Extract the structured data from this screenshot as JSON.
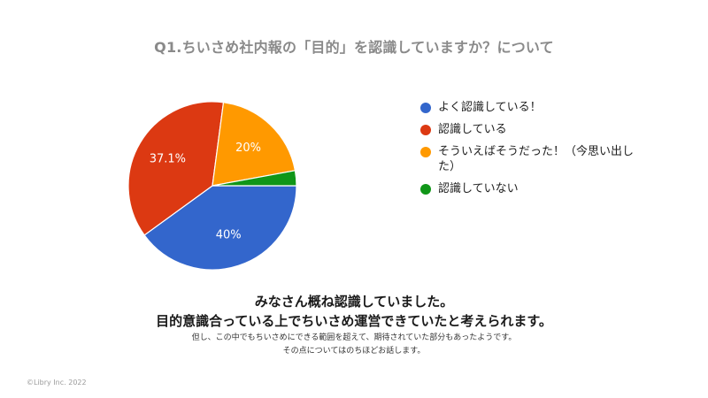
{
  "chart_data": {
    "type": "pie",
    "title": "Q1.ちいさめ社内報の「目的」を認識していますか？について",
    "slices": [
      {
        "label": "よく認識している！",
        "value": 40,
        "display": "40%",
        "color": "#3366cc"
      },
      {
        "label": "認識している",
        "value": 37.1,
        "display": "37.1%",
        "color": "#dc3912"
      },
      {
        "label": "そういえばそうだった！（今思い出した）",
        "value": 20,
        "display": "20%",
        "color": "#ff9900"
      },
      {
        "label": "認識していない",
        "value": 2.9,
        "display": "",
        "color": "#109618"
      }
    ],
    "legend_position": "right"
  },
  "message": {
    "line1": "みなさん概ね認識していました。",
    "line2": "目的意識合っている上でちいさめ運営できていたと考えられます。",
    "sub1": "但し、この中でもちいさめにできる範囲を超えて、期待されていた部分もあったようです。",
    "sub2": "その点についてはのちほどお話します。"
  },
  "footer": "©Libry Inc. 2022"
}
